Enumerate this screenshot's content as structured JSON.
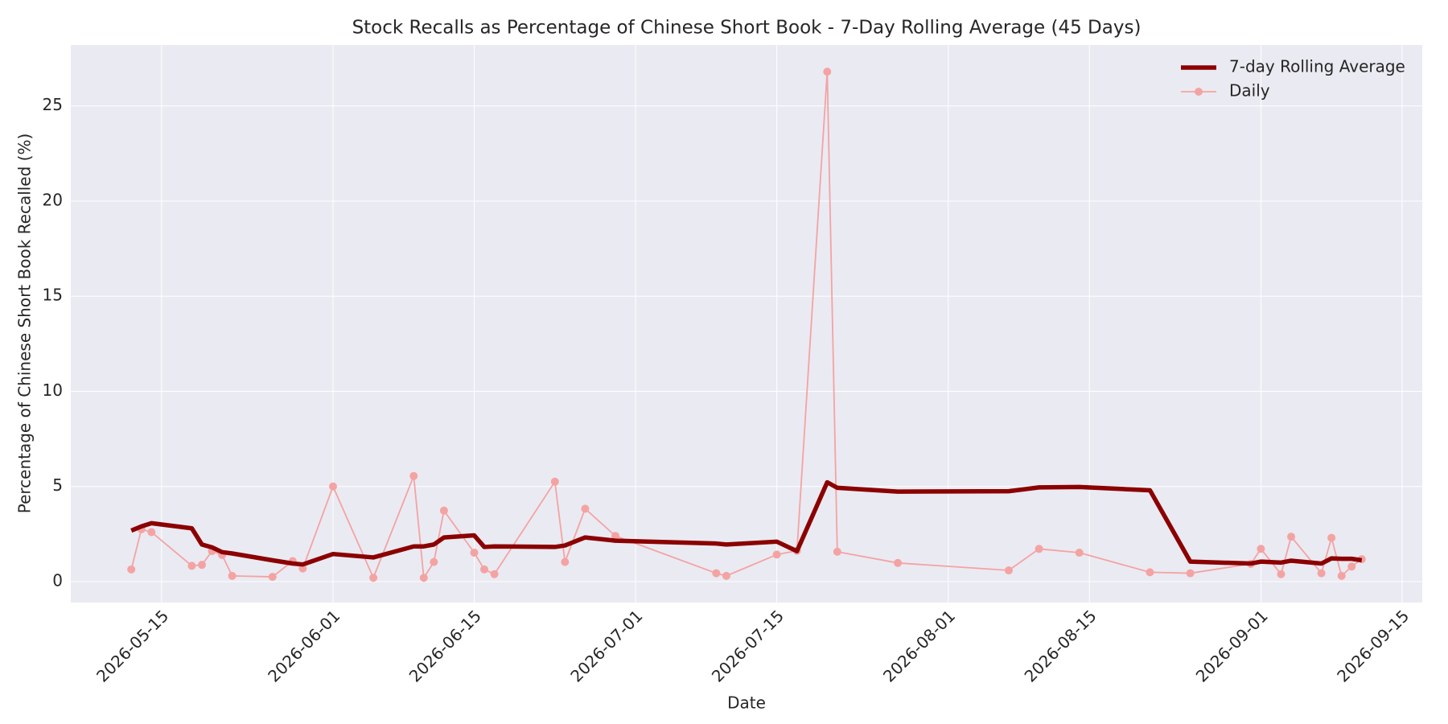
{
  "chart_data": {
    "type": "line",
    "title": "Stock Recalls as Percentage of Chinese Short Book - 7-Day Rolling Average (45 Days)",
    "xlabel": "Date",
    "ylabel": "Percentage of Chinese Short Book Recalled (%)",
    "x": [
      "2026-05-12",
      "2026-05-13",
      "2026-05-14",
      "2026-05-18",
      "2026-05-19",
      "2026-05-20",
      "2026-05-21",
      "2026-05-22",
      "2026-05-26",
      "2026-05-28",
      "2026-05-29",
      "2026-06-01",
      "2026-06-05",
      "2026-06-09",
      "2026-06-10",
      "2026-06-11",
      "2026-06-12",
      "2026-06-15",
      "2026-06-16",
      "2026-06-17",
      "2026-06-23",
      "2026-06-24",
      "2026-06-26",
      "2026-06-29",
      "2026-07-09",
      "2026-07-10",
      "2026-07-15",
      "2026-07-17",
      "2026-07-20",
      "2026-07-21",
      "2026-07-27",
      "2026-08-07",
      "2026-08-10",
      "2026-08-14",
      "2026-08-21",
      "2026-08-25",
      "2026-08-31",
      "2026-09-01",
      "2026-09-03",
      "2026-09-04",
      "2026-09-07",
      "2026-09-08",
      "2026-09-09",
      "2026-09-10",
      "2026-09-11"
    ],
    "series": [
      {
        "name": "7-day Rolling Average",
        "color": "#8b0000",
        "marker": false,
        "values": [
          2.68,
          2.9,
          3.07,
          2.8,
          1.95,
          1.8,
          1.55,
          1.48,
          1.12,
          0.95,
          0.9,
          1.45,
          1.27,
          1.85,
          1.85,
          1.95,
          2.32,
          2.43,
          1.82,
          1.85,
          1.82,
          1.9,
          2.32,
          2.15,
          2.0,
          1.95,
          2.1,
          1.6,
          5.22,
          4.93,
          4.73,
          4.75,
          4.95,
          4.97,
          4.8,
          1.05,
          0.95,
          1.05,
          1.0,
          1.1,
          0.95,
          1.22,
          1.2,
          1.2,
          1.12
        ]
      },
      {
        "name": "Daily",
        "color": "#f4a3a3",
        "marker": true,
        "values": [
          0.64,
          2.75,
          2.6,
          0.83,
          0.88,
          1.6,
          1.4,
          0.3,
          0.25,
          1.08,
          0.69,
          5.0,
          0.2,
          5.55,
          0.2,
          1.03,
          3.73,
          1.52,
          0.64,
          0.39,
          5.25,
          1.03,
          3.83,
          2.4,
          0.44,
          0.3,
          1.42,
          1.62,
          26.8,
          1.57,
          0.98,
          0.59,
          1.72,
          1.52,
          0.49,
          0.44,
          0.93,
          1.72,
          0.39,
          2.36,
          0.44,
          2.3,
          0.3,
          0.79,
          1.18
        ]
      }
    ],
    "xlim": [
      "2026-05-06",
      "2026-09-17"
    ],
    "xticks": [
      "2026-05-15",
      "2026-06-01",
      "2026-06-15",
      "2026-07-01",
      "2026-07-15",
      "2026-08-01",
      "2026-08-15",
      "2026-09-01",
      "2026-09-15"
    ],
    "ylim": [
      -1.1,
      28.2
    ],
    "yticks": [
      0,
      5,
      10,
      15,
      20,
      25
    ],
    "grid": true,
    "legend": "upper right"
  }
}
